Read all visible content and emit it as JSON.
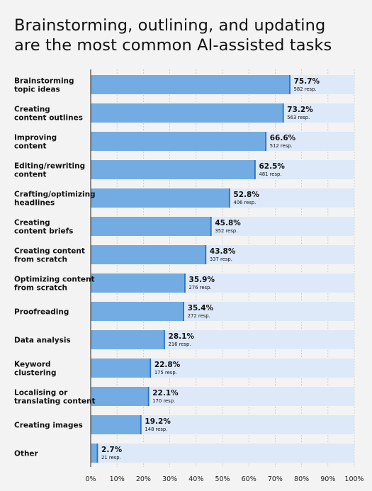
{
  "title_lines": [
    "Brainstorming, outlining, and updating",
    "are the most common AI-assisted tasks"
  ],
  "colors": {
    "bar": "#73ace3",
    "bar_edge": "#2d6fc1",
    "track": "#dde9f8",
    "axis": "#222222",
    "background": "#f3f3f3"
  },
  "chart_data": {
    "type": "bar",
    "orientation": "horizontal",
    "categories": [
      [
        "Brainstorming",
        "topic ideas"
      ],
      [
        "Creating",
        "content outlines"
      ],
      [
        "Improving",
        "content"
      ],
      [
        "Editing/rewriting",
        "content"
      ],
      [
        "Crafting/optimizing",
        "headlines"
      ],
      [
        "Creating",
        "content briefs"
      ],
      [
        "Creating content",
        "from scratch"
      ],
      [
        "Optimizing content",
        "from scratch"
      ],
      [
        "Proofreading"
      ],
      [
        "Data analysis"
      ],
      [
        "Keyword",
        "clustering"
      ],
      [
        "Localising or",
        "translating content"
      ],
      [
        "Creating images"
      ],
      [
        "Other"
      ]
    ],
    "values": [
      75.7,
      73.2,
      66.6,
      62.5,
      52.8,
      45.8,
      43.8,
      35.9,
      35.4,
      28.1,
      22.8,
      22.1,
      19.2,
      2.7
    ],
    "value_labels": [
      "75.7%",
      "73.2%",
      "66.6%",
      "62.5%",
      "52.8%",
      "45.8%",
      "43.8%",
      "35.9%",
      "35.4%",
      "28.1%",
      "22.8%",
      "22.1%",
      "19.2%",
      "2.7%"
    ],
    "responses": [
      "582 resp.",
      "563 resp.",
      "512 resp.",
      "481 resp.",
      "406 resp.",
      "352 resp.",
      "337 resp.",
      "276 resp.",
      "272 resp.",
      "216 resp.",
      "175 resp.",
      "170 resp.",
      "148 resp.",
      "21 resp."
    ],
    "x_ticks": [
      "0%",
      "10%",
      "20%",
      "30%",
      "40%",
      "50%",
      "60%",
      "70%",
      "80%",
      "90%",
      "100%"
    ],
    "xlim": [
      0,
      100
    ],
    "grid": true
  }
}
